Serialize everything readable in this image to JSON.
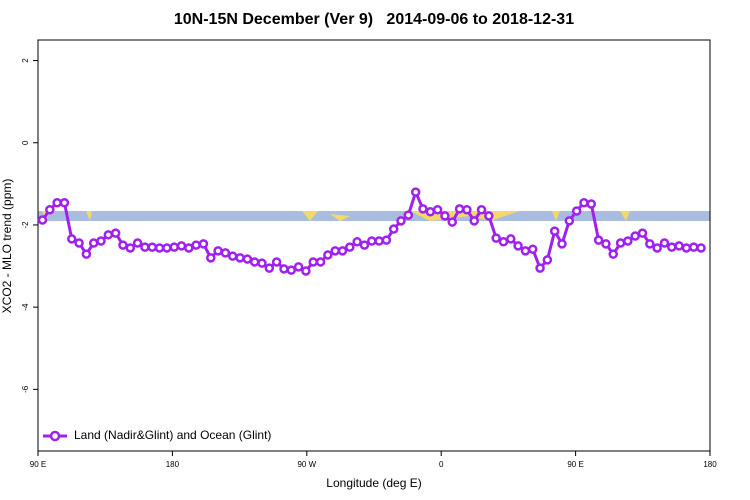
{
  "chart_data": {
    "type": "line",
    "title": "10N-15N December (Ver 9)   2014-09-06 to 2018-12-31",
    "x_label": "Longitude (deg E)",
    "y_label": "XCO2 - MLO trend (ppm)",
    "xlim": [
      90,
      540
    ],
    "ylim": [
      -7.5,
      2.5
    ],
    "xticks": [
      {
        "value": 90,
        "label": "90 E"
      },
      180,
      {
        "value": 270,
        "label": "90 W"
      },
      {
        "value": 360,
        "label": "0"
      },
      {
        "value": 450,
        "label": "90 E"
      },
      {
        "value": 540,
        "label": "180"
      }
    ],
    "yticks": [
      -6,
      -4,
      -2,
      0,
      2
    ],
    "legend_position": "bottomleft",
    "x": [
      93,
      97.9,
      102.8,
      107.7,
      112.6,
      117.5,
      122.4,
      127.3,
      132.2,
      137.1,
      142,
      146.9,
      151.8,
      156.7,
      161.6,
      166.5,
      171.4,
      176.3,
      181.2,
      186.1,
      191,
      195.9,
      200.8,
      205.7,
      210.6,
      215.5,
      220.4,
      225.3,
      230.2,
      235.1,
      240,
      244.9,
      249.8,
      254.7,
      259.6,
      264.5,
      269.4,
      274.3,
      279.2,
      284.1,
      289,
      293.9,
      298.8,
      303.7,
      308.6,
      313.5,
      318.4,
      323.3,
      328.2,
      333.1,
      338,
      342.9,
      347.8,
      352.7,
      357.6,
      362.5,
      367.4,
      372.3,
      377.2,
      382.1,
      387,
      391.9,
      396.8,
      401.7,
      406.6,
      411.5,
      416.4,
      421.3,
      426.2,
      431.1,
      436,
      440.9,
      445.8,
      450.7,
      455.6,
      460.5,
      465.4,
      470.3,
      475.2,
      480.1,
      485,
      489.9,
      494.8,
      499.7,
      504.6,
      509.5,
      514.4,
      519.3,
      524.2,
      529.1,
      534
    ],
    "series": [
      {
        "name": "Land (Nadir&Glint) and Ocean (Glint)",
        "color": "#a020f0",
        "values": [
          -1.88,
          -1.63,
          -1.46,
          -1.46,
          -2.34,
          -2.44,
          -2.71,
          -2.44,
          -2.39,
          -2.24,
          -2.2,
          -2.49,
          -2.56,
          -2.44,
          -2.54,
          -2.54,
          -2.56,
          -2.56,
          -2.54,
          -2.51,
          -2.56,
          -2.49,
          -2.46,
          -2.8,
          -2.63,
          -2.68,
          -2.76,
          -2.8,
          -2.83,
          -2.9,
          -2.93,
          -3.05,
          -2.9,
          -3.07,
          -3.1,
          -3.02,
          -3.12,
          -2.9,
          -2.9,
          -2.73,
          -2.63,
          -2.63,
          -2.54,
          -2.41,
          -2.49,
          -2.39,
          -2.39,
          -2.37,
          -2.1,
          -1.9,
          -1.76,
          -1.2,
          -1.61,
          -1.68,
          -1.63,
          -1.78,
          -1.93,
          -1.61,
          -1.63,
          -1.9,
          -1.63,
          -1.78,
          -2.32,
          -2.41,
          -2.34,
          -2.51,
          -2.63,
          -2.59,
          -3.05,
          -2.85,
          -2.15,
          -2.46,
          -1.9,
          -1.66,
          -1.46,
          -1.49,
          -2.37,
          -2.46,
          -2.71,
          -2.44,
          -2.39,
          -2.27,
          -2.2,
          -2.46,
          -2.56,
          -2.44,
          -2.54,
          -2.51,
          -2.56,
          -2.54,
          -2.56
        ]
      }
    ]
  }
}
